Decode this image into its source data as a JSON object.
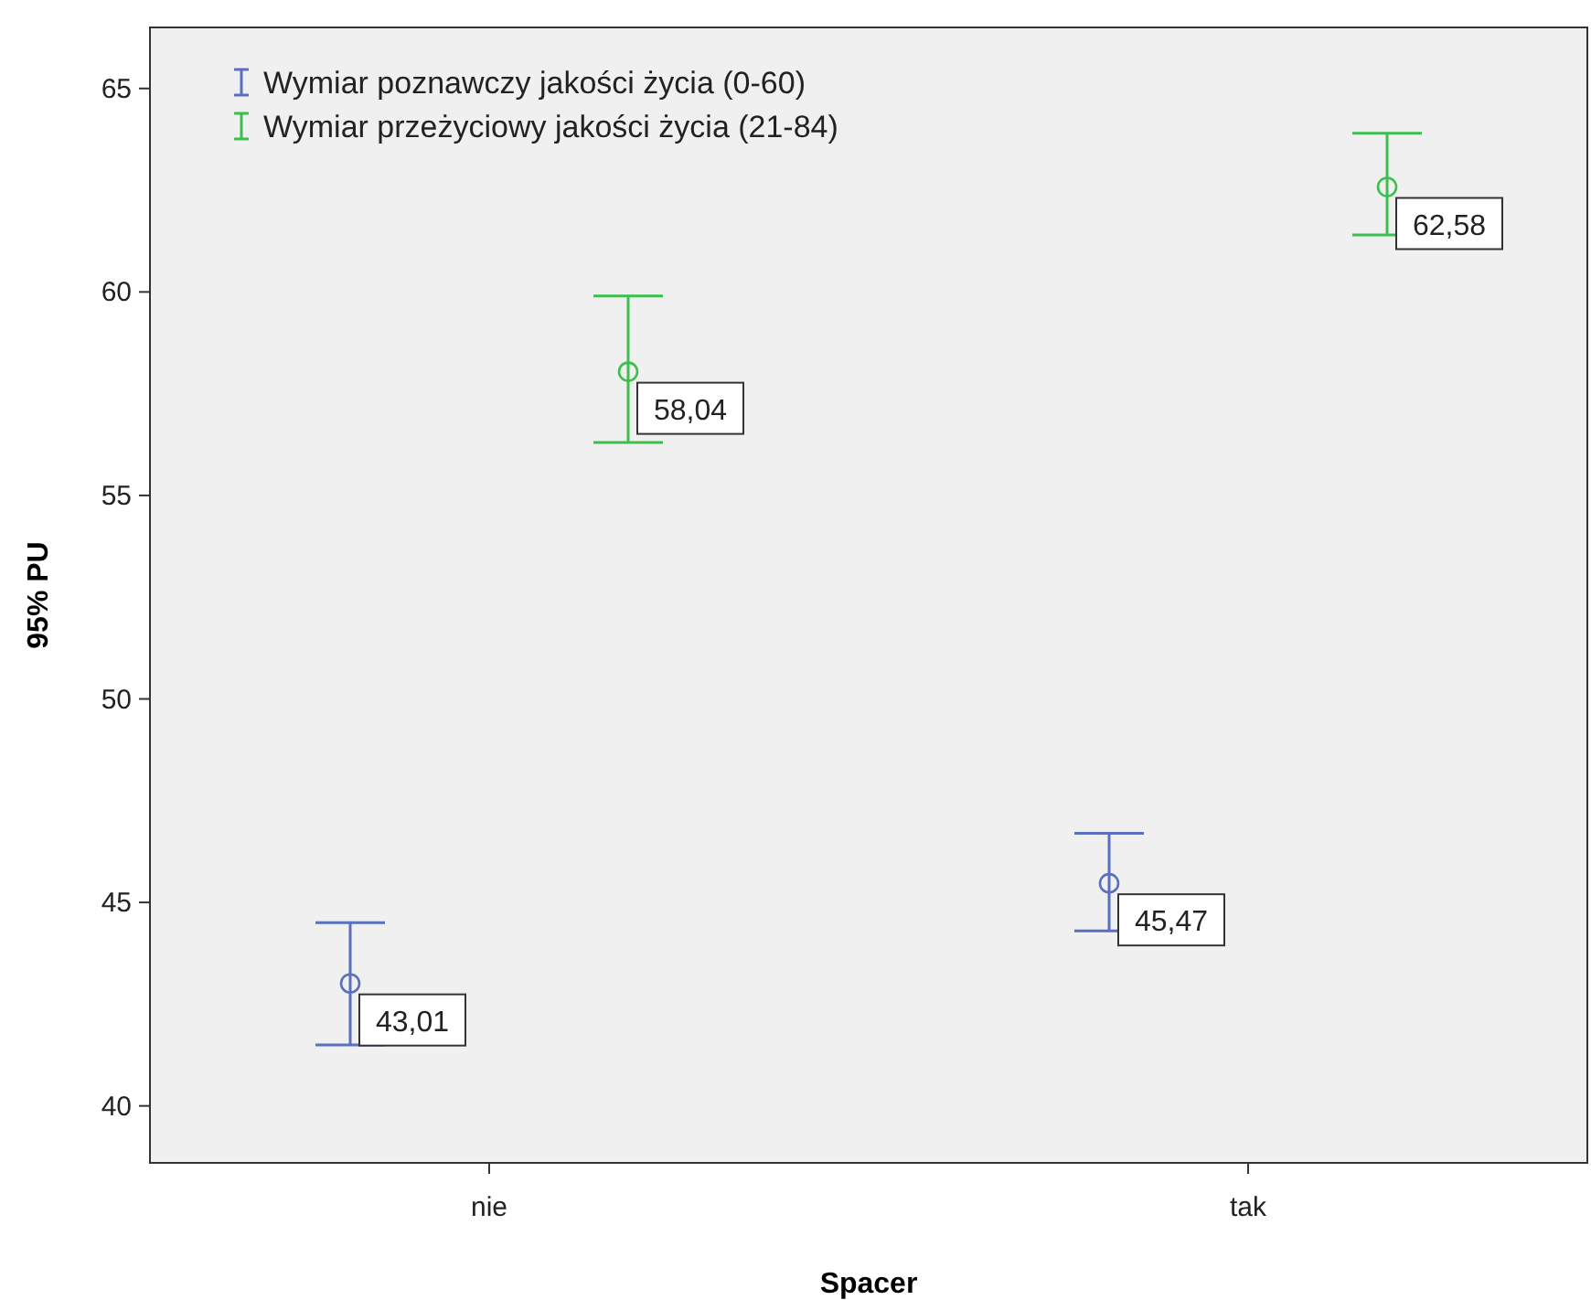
{
  "chart_data": {
    "type": "scatter",
    "xlabel": "Spacer",
    "ylabel": "95% PU",
    "categories": [
      "nie",
      "tak"
    ],
    "ylim": [
      38.6,
      66.5
    ],
    "yticks": [
      40,
      45,
      50,
      55,
      60,
      65
    ],
    "grid": false,
    "legend": "top left",
    "marker": "circle",
    "series": [
      {
        "name": "Wymiar poznawczy jakości życia (0-60)",
        "color": "#5a6fc0",
        "values": [
          43.01,
          45.47
        ],
        "errors": [
          [
            41.5,
            44.5
          ],
          [
            44.3,
            46.7
          ]
        ],
        "value_labels": [
          "43,01",
          "45,47"
        ]
      },
      {
        "name": "Wymiar przeżyciowy jakości życia (21-84)",
        "color": "#3cbf4f",
        "values": [
          58.04,
          62.58
        ],
        "errors": [
          [
            56.3,
            59.9
          ],
          [
            61.4,
            63.9
          ]
        ],
        "value_labels": [
          "58,04",
          "62,58"
        ]
      }
    ]
  }
}
